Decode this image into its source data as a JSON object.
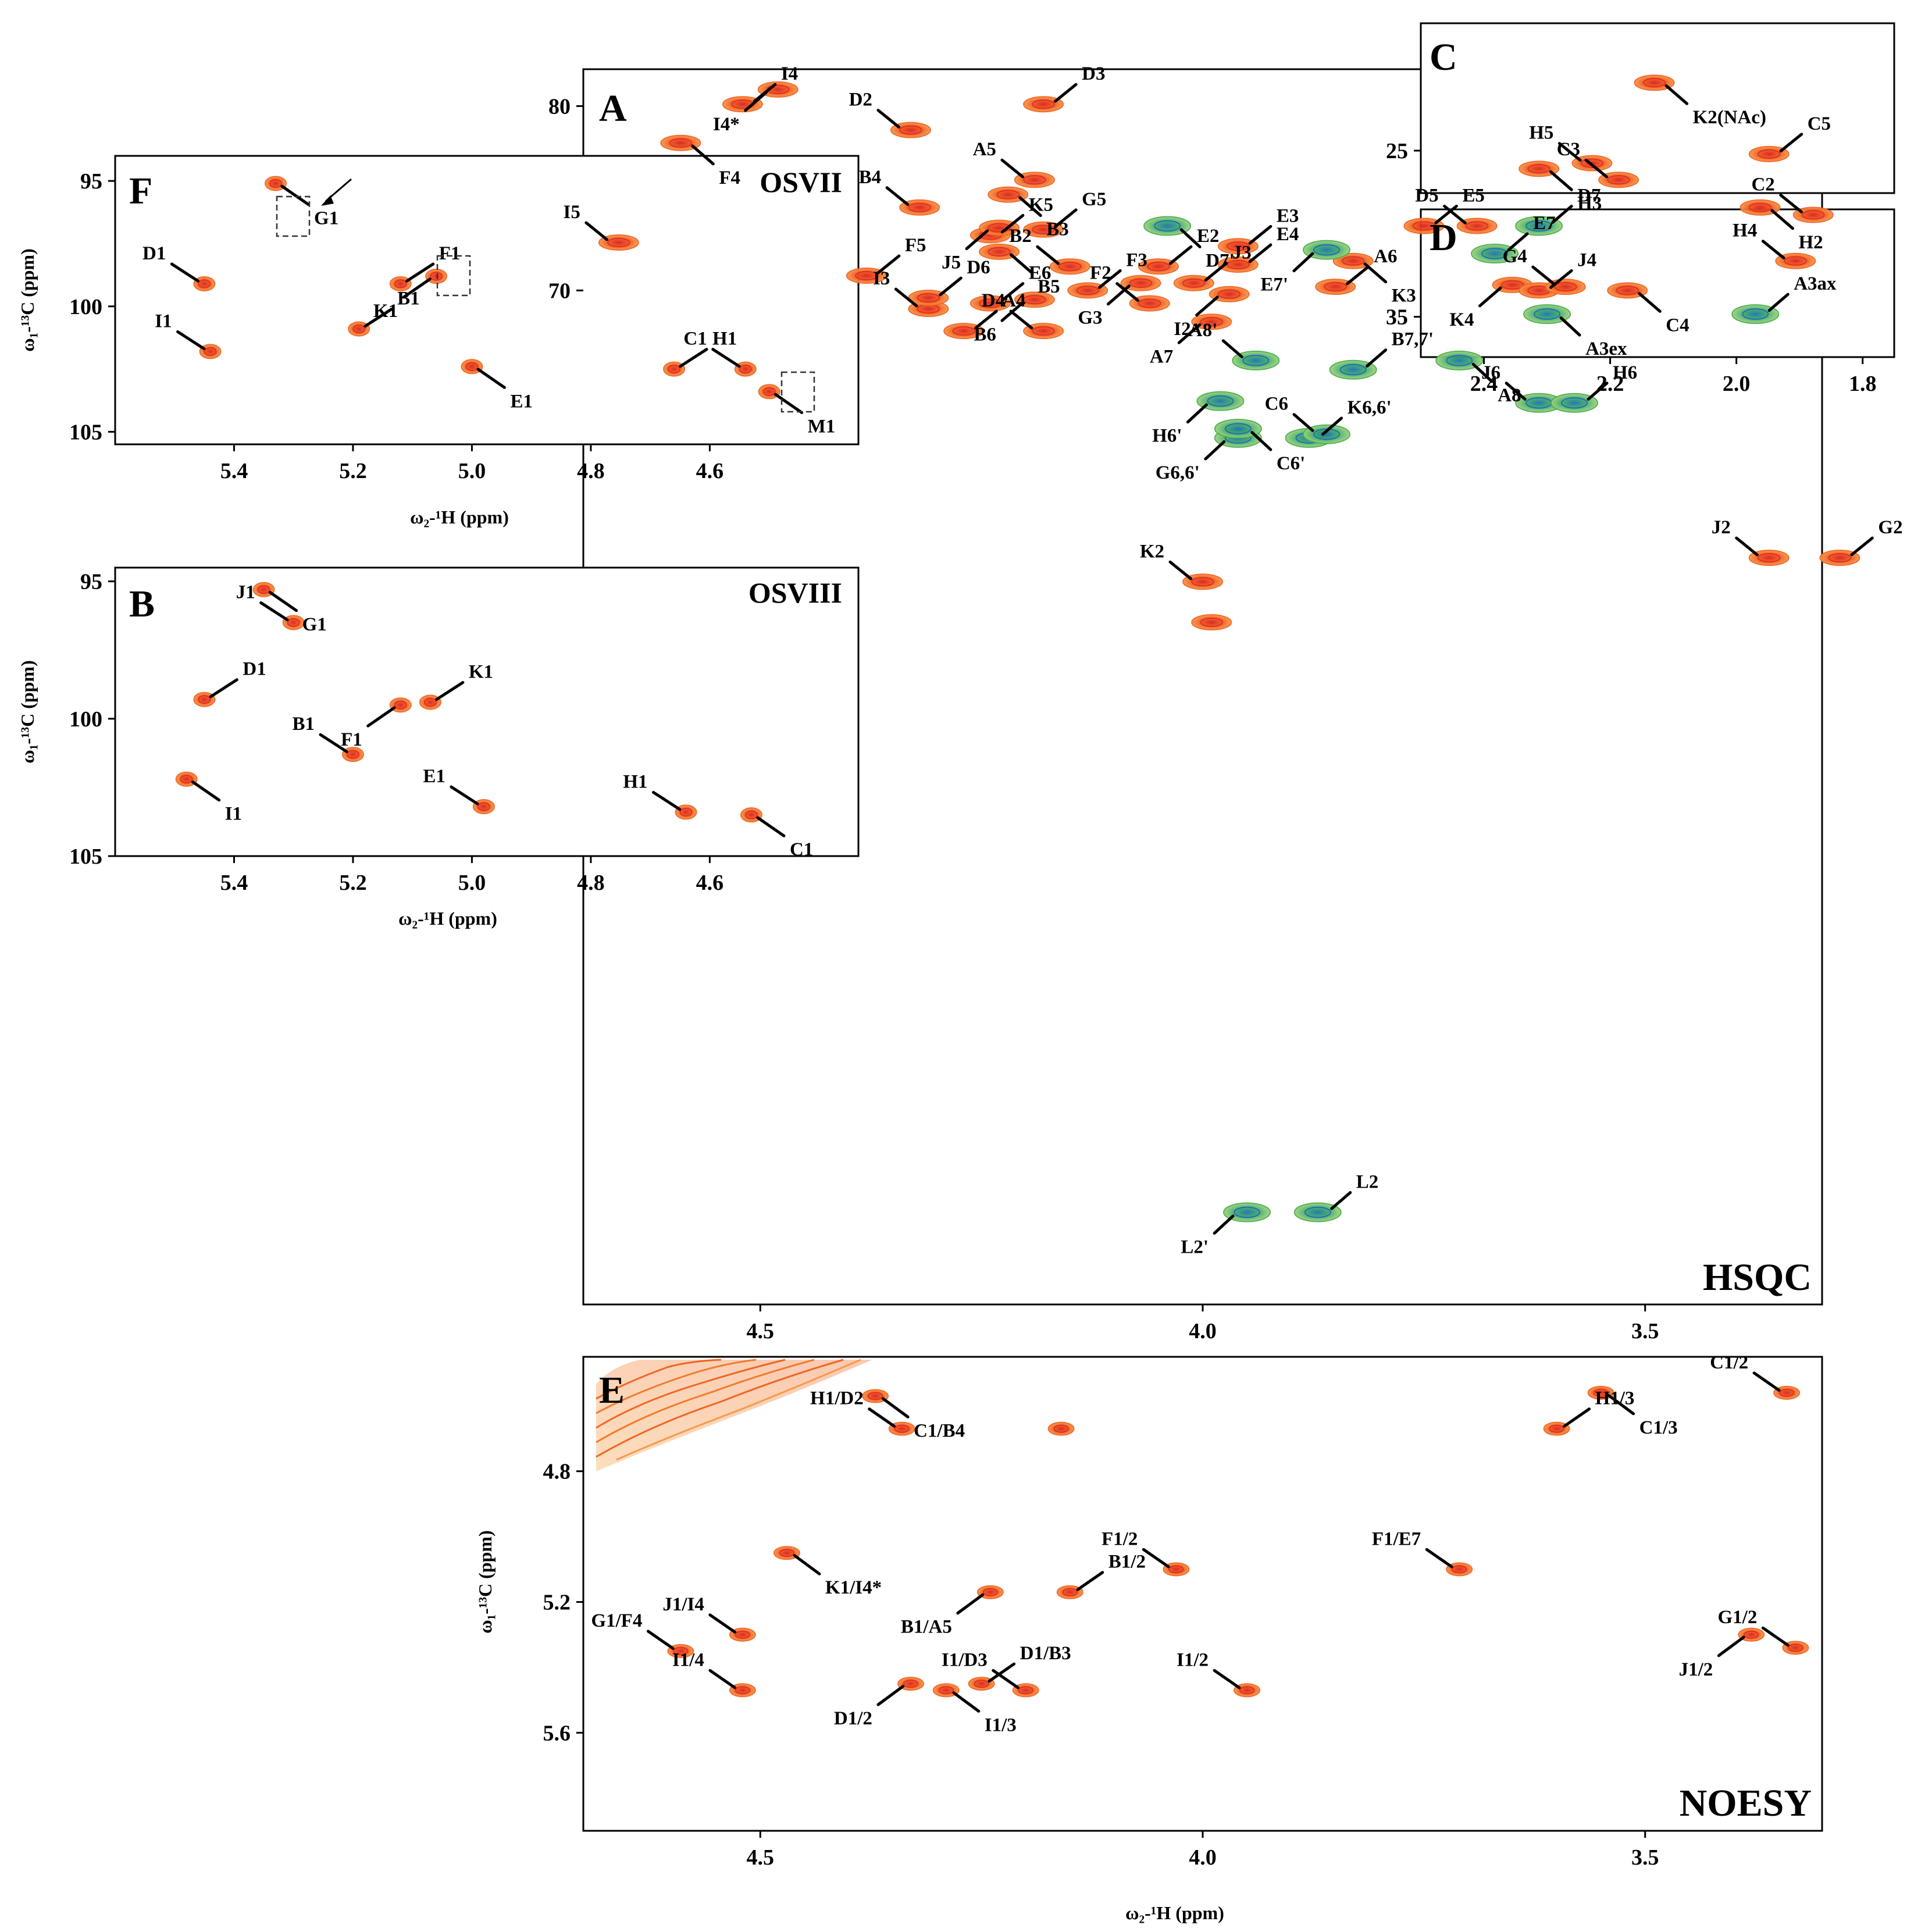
{
  "colors": {
    "positive": "#f26522",
    "positive_core": "#e0301e",
    "negative": "#4caf50",
    "negative_core": "#1e6fb8"
  },
  "chart_data": [
    {
      "id": "A",
      "type": "scatter",
      "panel_letter": "A",
      "title": "HSQC",
      "xlabel": "",
      "ylabel": "",
      "xlim": [
        4.7,
        3.3
      ],
      "ylim": [
        82,
        15
      ],
      "xticks": [
        "4.5",
        "4.0",
        "3.5"
      ],
      "yticks": [
        "70",
        "80"
      ],
      "peaks": [
        {
          "label": "L2'",
          "x": 3.95,
          "y": 20.0,
          "sign": "neg"
        },
        {
          "label": "L2",
          "x": 3.87,
          "y": 20.0,
          "sign": "neg"
        },
        {
          "label": "K2",
          "x": 4.0,
          "y": 54.2,
          "sign": "pos"
        },
        {
          "label": "",
          "x": 3.99,
          "y": 52.0,
          "sign": "pos"
        },
        {
          "label": "J2",
          "x": 3.36,
          "y": 55.5,
          "sign": "pos"
        },
        {
          "label": "G2",
          "x": 3.28,
          "y": 55.5,
          "sign": "pos"
        },
        {
          "label": "G6,6'",
          "x": 3.96,
          "y": 62.0,
          "sign": "neg"
        },
        {
          "label": "K6,6'",
          "x": 3.88,
          "y": 62.0,
          "sign": "neg"
        },
        {
          "label": "C6",
          "x": 3.86,
          "y": 62.2,
          "sign": "neg"
        },
        {
          "label": "C6'",
          "x": 3.96,
          "y": 62.5,
          "sign": "neg"
        },
        {
          "label": "J6",
          "x": 3.62,
          "y": 63.9,
          "sign": "neg"
        },
        {
          "label": "H6",
          "x": 3.58,
          "y": 63.9,
          "sign": "neg"
        },
        {
          "label": "H6'",
          "x": 3.98,
          "y": 64.0,
          "sign": "neg"
        },
        {
          "label": "B7,7'",
          "x": 3.83,
          "y": 65.7,
          "sign": "neg"
        },
        {
          "label": "A8'",
          "x": 3.94,
          "y": 66.2,
          "sign": "neg"
        },
        {
          "label": "A8",
          "x": 3.71,
          "y": 66.2,
          "sign": "neg"
        },
        {
          "label": "A4",
          "x": 4.27,
          "y": 67.8,
          "sign": "pos"
        },
        {
          "label": "D4",
          "x": 4.18,
          "y": 67.8,
          "sign": "pos"
        },
        {
          "label": "A7",
          "x": 3.99,
          "y": 68.3,
          "sign": "pos"
        },
        {
          "label": "I3",
          "x": 4.31,
          "y": 69.0,
          "sign": "pos"
        },
        {
          "label": "E6",
          "x": 4.24,
          "y": 69.3,
          "sign": "pos"
        },
        {
          "label": "B6",
          "x": 4.19,
          "y": 69.5,
          "sign": "pos"
        },
        {
          "label": "D6",
          "x": 4.31,
          "y": 69.6,
          "sign": "pos"
        },
        {
          "label": "F2",
          "x": 4.06,
          "y": 69.3,
          "sign": "pos"
        },
        {
          "label": "I2",
          "x": 3.97,
          "y": 69.8,
          "sign": "pos"
        },
        {
          "label": "A6",
          "x": 3.85,
          "y": 70.2,
          "sign": "pos"
        },
        {
          "label": "F3",
          "x": 4.13,
          "y": 70.0,
          "sign": "pos"
        },
        {
          "label": "G3",
          "x": 4.07,
          "y": 70.4,
          "sign": "pos"
        },
        {
          "label": "J3",
          "x": 4.01,
          "y": 70.4,
          "sign": "pos"
        },
        {
          "label": "E4",
          "x": 3.96,
          "y": 71.4,
          "sign": "pos"
        },
        {
          "label": "K4",
          "x": 3.65,
          "y": 70.3,
          "sign": "pos"
        },
        {
          "label": "J4",
          "x": 3.62,
          "y": 70.0,
          "sign": "pos"
        },
        {
          "label": "G4",
          "x": 3.59,
          "y": 70.2,
          "sign": "pos"
        },
        {
          "label": "C4",
          "x": 3.52,
          "y": 70.0,
          "sign": "pos"
        },
        {
          "label": "F5",
          "x": 4.38,
          "y": 70.8,
          "sign": "pos"
        },
        {
          "label": "I5",
          "x": 4.66,
          "y": 72.6,
          "sign": "pos"
        },
        {
          "label": "B5",
          "x": 4.23,
          "y": 72.1,
          "sign": "pos"
        },
        {
          "label": "B2",
          "x": 4.15,
          "y": 71.3,
          "sign": "pos"
        },
        {
          "label": "E2",
          "x": 4.05,
          "y": 71.3,
          "sign": "pos"
        },
        {
          "label": "K3",
          "x": 3.83,
          "y": 71.6,
          "sign": "pos"
        },
        {
          "label": "H4",
          "x": 3.33,
          "y": 71.6,
          "sign": "pos"
        },
        {
          "label": "E7",
          "x": 3.67,
          "y": 72.0,
          "sign": "neg"
        },
        {
          "label": "E7'",
          "x": 3.86,
          "y": 72.2,
          "sign": "neg"
        },
        {
          "label": "E3",
          "x": 3.96,
          "y": 72.4,
          "sign": "pos"
        },
        {
          "label": "K5",
          "x": 4.24,
          "y": 73.0,
          "sign": "pos"
        },
        {
          "label": "J5",
          "x": 4.23,
          "y": 73.4,
          "sign": "pos"
        },
        {
          "label": "G5",
          "x": 4.18,
          "y": 73.3,
          "sign": "pos"
        },
        {
          "label": "D7",
          "x": 3.62,
          "y": 73.5,
          "sign": "neg"
        },
        {
          "label": "D7'",
          "x": 4.04,
          "y": 73.5,
          "sign": "neg"
        },
        {
          "label": "E5",
          "x": 3.75,
          "y": 73.5,
          "sign": "pos"
        },
        {
          "label": "D5",
          "x": 3.69,
          "y": 73.5,
          "sign": "pos"
        },
        {
          "label": "H2",
          "x": 3.37,
          "y": 74.5,
          "sign": "pos"
        },
        {
          "label": "C2",
          "x": 3.31,
          "y": 74.1,
          "sign": "pos"
        },
        {
          "label": "B4",
          "x": 4.32,
          "y": 74.5,
          "sign": "pos"
        },
        {
          "label": "B3",
          "x": 4.22,
          "y": 75.2,
          "sign": "pos"
        },
        {
          "label": "A5",
          "x": 4.19,
          "y": 76.0,
          "sign": "pos"
        },
        {
          "label": "C3",
          "x": 3.53,
          "y": 76.0,
          "sign": "pos"
        },
        {
          "label": "H3",
          "x": 3.62,
          "y": 76.6,
          "sign": "pos"
        },
        {
          "label": "H5",
          "x": 3.56,
          "y": 76.9,
          "sign": "pos"
        },
        {
          "label": "C5",
          "x": 3.36,
          "y": 77.4,
          "sign": "pos"
        },
        {
          "label": "F4",
          "x": 4.59,
          "y": 78.0,
          "sign": "pos"
        },
        {
          "label": "D2",
          "x": 4.33,
          "y": 78.7,
          "sign": "pos"
        },
        {
          "label": "I4",
          "x": 4.52,
          "y": 80.1,
          "sign": "pos"
        },
        {
          "label": "I4*",
          "x": 4.48,
          "y": 80.9,
          "sign": "pos"
        },
        {
          "label": "D3",
          "x": 4.18,
          "y": 80.1,
          "sign": "pos"
        }
      ]
    },
    {
      "id": "C",
      "type": "scatter",
      "panel_letter": "C",
      "xlim": [
        2.5,
        1.75
      ],
      "ylim": [
        19,
        27
      ],
      "yticks": [
        "25"
      ],
      "peaks": [
        {
          "label": "K2(NAc)",
          "x": 2.13,
          "y": 21.8,
          "sign": "pos"
        }
      ]
    },
    {
      "id": "D",
      "type": "scatter",
      "panel_letter": "D",
      "xlim": [
        2.5,
        1.75
      ],
      "ylim": [
        31,
        36.5
      ],
      "xticks": [
        "2.4",
        "2.2",
        "2.0",
        "1.8"
      ],
      "yticks": [
        "35"
      ],
      "peaks": [
        {
          "label": "A3ex",
          "x": 2.3,
          "y": 34.9,
          "sign": "neg"
        },
        {
          "label": "A3ax",
          "x": 1.97,
          "y": 34.9,
          "sign": "neg"
        }
      ]
    },
    {
      "id": "F",
      "type": "scatter",
      "panel_letter": "F",
      "title": "OSVII",
      "xlabel": "ω₂-¹H (ppm)",
      "ylabel": "ω₁-¹³C (ppm)",
      "xlim": [
        5.6,
        4.35
      ],
      "ylim": [
        94,
        105.5
      ],
      "xticks": [
        "5.4",
        "5.2",
        "5.0",
        "4.8",
        "4.6"
      ],
      "yticks": [
        "95",
        "100",
        "105"
      ],
      "peaks": [
        {
          "label": "G1",
          "x": 5.33,
          "y": 95.1,
          "sign": "pos"
        },
        {
          "label": "D1",
          "x": 5.45,
          "y": 99.1,
          "sign": "pos"
        },
        {
          "label": "F1",
          "x": 5.12,
          "y": 99.1,
          "sign": "pos"
        },
        {
          "label": "K1",
          "x": 5.06,
          "y": 98.8,
          "sign": "pos"
        },
        {
          "label": "B1",
          "x": 5.19,
          "y": 100.9,
          "sign": "pos"
        },
        {
          "label": "I1",
          "x": 5.44,
          "y": 101.8,
          "sign": "pos"
        },
        {
          "label": "E1",
          "x": 5.0,
          "y": 102.4,
          "sign": "pos"
        },
        {
          "label": "H1",
          "x": 4.66,
          "y": 102.5,
          "sign": "pos"
        },
        {
          "label": "C1",
          "x": 4.54,
          "y": 102.5,
          "sign": "pos"
        },
        {
          "label": "M1",
          "x": 4.5,
          "y": 103.4,
          "sign": "pos"
        }
      ]
    },
    {
      "id": "B",
      "type": "scatter",
      "panel_letter": "B",
      "title": "OSVIII",
      "xlabel": "ω₂-¹H (ppm)",
      "ylabel": "ω₁-¹³C (ppm)",
      "xlim": [
        5.6,
        4.35
      ],
      "ylim": [
        94.5,
        105
      ],
      "xticks": [
        "5.4",
        "5.2",
        "5.0",
        "4.8",
        "4.6"
      ],
      "yticks": [
        "95",
        "100",
        "105"
      ],
      "peaks": [
        {
          "label": "G1",
          "x": 5.35,
          "y": 95.3,
          "sign": "pos"
        },
        {
          "label": "J1",
          "x": 5.3,
          "y": 96.5,
          "sign": "pos"
        },
        {
          "label": "D1",
          "x": 5.45,
          "y": 99.3,
          "sign": "pos"
        },
        {
          "label": "F1",
          "x": 5.12,
          "y": 99.5,
          "sign": "pos"
        },
        {
          "label": "K1",
          "x": 5.07,
          "y": 99.4,
          "sign": "pos"
        },
        {
          "label": "B1",
          "x": 5.2,
          "y": 101.3,
          "sign": "pos"
        },
        {
          "label": "I1",
          "x": 5.48,
          "y": 102.2,
          "sign": "pos"
        },
        {
          "label": "E1",
          "x": 4.98,
          "y": 103.2,
          "sign": "pos"
        },
        {
          "label": "H1",
          "x": 4.64,
          "y": 103.4,
          "sign": "pos"
        },
        {
          "label": "C1",
          "x": 4.53,
          "y": 103.5,
          "sign": "pos"
        }
      ]
    },
    {
      "id": "E",
      "type": "scatter",
      "panel_letter": "E",
      "title": "NOESY",
      "xlabel": "ω₂-¹H (ppm)",
      "ylabel": "ω₁-¹³C (ppm)",
      "xlim": [
        4.7,
        3.3
      ],
      "ylim": [
        4.45,
        5.9
      ],
      "xticks": [
        "4.5",
        "4.0",
        "3.5"
      ],
      "yticks": [
        "4.8",
        "5.2",
        "5.6"
      ],
      "peaks": [
        {
          "label": "C1/B4",
          "x": 4.37,
          "y": 4.57,
          "sign": "pos"
        },
        {
          "label": "H1/D2",
          "x": 4.34,
          "y": 4.67,
          "sign": "pos"
        },
        {
          "label": "",
          "x": 4.16,
          "y": 4.67,
          "sign": "pos"
        },
        {
          "label": "C1/3",
          "x": 3.55,
          "y": 4.56,
          "sign": "pos"
        },
        {
          "label": "C1/2",
          "x": 3.34,
          "y": 4.56,
          "sign": "pos"
        },
        {
          "label": "H1/3",
          "x": 3.6,
          "y": 4.67,
          "sign": "pos"
        },
        {
          "label": "K1/I4*",
          "x": 4.47,
          "y": 5.05,
          "sign": "pos"
        },
        {
          "label": "F1/2",
          "x": 4.03,
          "y": 5.1,
          "sign": "pos"
        },
        {
          "label": "F1/E7",
          "x": 3.71,
          "y": 5.1,
          "sign": "pos"
        },
        {
          "label": "B1/A5",
          "x": 4.24,
          "y": 5.17,
          "sign": "pos"
        },
        {
          "label": "B1/2",
          "x": 4.15,
          "y": 5.17,
          "sign": "pos"
        },
        {
          "label": "J1/I4",
          "x": 4.52,
          "y": 5.3,
          "sign": "pos"
        },
        {
          "label": "J1/2",
          "x": 3.38,
          "y": 5.3,
          "sign": "pos"
        },
        {
          "label": "G1/F4",
          "x": 4.59,
          "y": 5.35,
          "sign": "pos"
        },
        {
          "label": "G1/2",
          "x": 3.33,
          "y": 5.34,
          "sign": "pos"
        },
        {
          "label": "D1/2",
          "x": 4.33,
          "y": 5.45,
          "sign": "pos"
        },
        {
          "label": "D1/B3",
          "x": 4.25,
          "y": 5.45,
          "sign": "pos"
        },
        {
          "label": "I1/4",
          "x": 4.52,
          "y": 5.47,
          "sign": "pos"
        },
        {
          "label": "I1/3",
          "x": 4.29,
          "y": 5.47,
          "sign": "pos"
        },
        {
          "label": "I1/D3",
          "x": 4.2,
          "y": 5.47,
          "sign": "pos"
        },
        {
          "label": "I1/2",
          "x": 3.95,
          "y": 5.47,
          "sign": "pos"
        }
      ]
    }
  ]
}
